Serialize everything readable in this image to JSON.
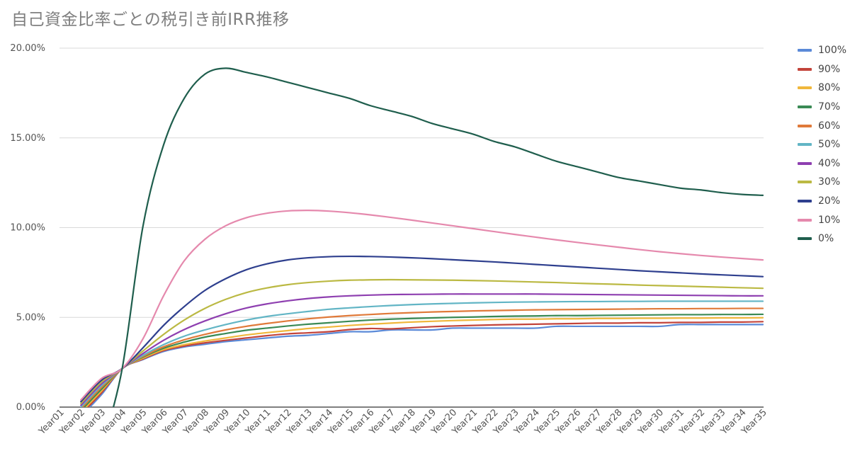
{
  "chart_data": {
    "type": "line",
    "title": "自己資金比率ごとの税引き前IRR推移",
    "xlabel": "",
    "ylabel": "",
    "ylim": [
      0,
      0.2
    ],
    "y_ticks": [
      0,
      0.05,
      0.1,
      0.15,
      0.2
    ],
    "y_tick_labels": [
      "0.00%",
      "5.00%",
      "10.00%",
      "15.00%",
      "20.00%"
    ],
    "grid": true,
    "legend": "right",
    "categories": [
      "Year01",
      "Year02",
      "Year03",
      "Year04",
      "Year05",
      "Year06",
      "Year07",
      "Year08",
      "Year09",
      "Year10",
      "Year11",
      "Year12",
      "Year13",
      "Year14",
      "Year15",
      "Year16",
      "Year17",
      "Year18",
      "Year19",
      "Year20",
      "Year21",
      "Year22",
      "Year23",
      "Year24",
      "Year25",
      "Year26",
      "Year27",
      "Year28",
      "Year29",
      "Year30",
      "Year31",
      "Year32",
      "Year33",
      "Year34",
      "Year35"
    ],
    "series": [
      {
        "name": "100%",
        "color": "#5b8ad8",
        "values": [
          null,
          -0.005,
          0.007,
          0.0215,
          0.0265,
          0.031,
          0.0335,
          0.035,
          0.0365,
          0.0375,
          0.0385,
          0.0395,
          0.04,
          0.041,
          0.042,
          0.042,
          0.043,
          0.043,
          0.043,
          0.044,
          0.044,
          0.044,
          0.044,
          0.044,
          0.045,
          0.045,
          0.045,
          0.045,
          0.045,
          0.045,
          0.046,
          0.046,
          0.046,
          0.046,
          0.046
        ]
      },
      {
        "name": "90%",
        "color": "#c3443b",
        "values": [
          null,
          -0.004,
          0.008,
          0.0215,
          0.0268,
          0.0315,
          0.034,
          0.0358,
          0.0372,
          0.0385,
          0.0398,
          0.0408,
          0.0414,
          0.042,
          0.0432,
          0.0438,
          0.0436,
          0.0442,
          0.0448,
          0.0452,
          0.0455,
          0.0458,
          0.046,
          0.0462,
          0.0464,
          0.0466,
          0.0468,
          0.0468,
          0.047,
          0.047,
          0.0472,
          0.0472,
          0.0474,
          0.0474,
          0.0476
        ]
      },
      {
        "name": "80%",
        "color": "#f0b73c",
        "values": [
          null,
          -0.003,
          0.009,
          0.0215,
          0.0272,
          0.032,
          0.0348,
          0.0368,
          0.0385,
          0.0402,
          0.0415,
          0.0426,
          0.0438,
          0.0446,
          0.0455,
          0.0462,
          0.0468,
          0.0474,
          0.0478,
          0.0482,
          0.0485,
          0.0488,
          0.049,
          0.049,
          0.0492,
          0.0492,
          0.0494,
          0.0494,
          0.0495,
          0.0495,
          0.0496,
          0.0496,
          0.0497,
          0.0497,
          0.0498
        ]
      },
      {
        "name": "70%",
        "color": "#3a8a55",
        "values": [
          null,
          -0.002,
          0.01,
          0.0215,
          0.0278,
          0.0328,
          0.0362,
          0.039,
          0.041,
          0.0428,
          0.044,
          0.0452,
          0.0462,
          0.047,
          0.0478,
          0.0485,
          0.049,
          0.0494,
          0.0497,
          0.05,
          0.0502,
          0.0505,
          0.0507,
          0.0508,
          0.051,
          0.051,
          0.0511,
          0.0512,
          0.0513,
          0.0514,
          0.0515,
          0.0515,
          0.0516,
          0.0516,
          0.0517
        ]
      },
      {
        "name": "60%",
        "color": "#e07a3a",
        "values": [
          null,
          -0.001,
          0.011,
          0.0215,
          0.0282,
          0.0336,
          0.0375,
          0.0405,
          0.043,
          0.045,
          0.0466,
          0.048,
          0.0492,
          0.0502,
          0.051,
          0.0516,
          0.0522,
          0.0526,
          0.053,
          0.0533,
          0.0536,
          0.0538,
          0.054,
          0.0542,
          0.0543,
          0.0544,
          0.0545,
          0.0546,
          0.0547,
          0.0548,
          0.0548,
          0.0549,
          0.0549,
          0.055,
          0.055
        ]
      },
      {
        "name": "50%",
        "color": "#62b5c5",
        "values": [
          null,
          0.0,
          0.012,
          0.0215,
          0.0288,
          0.0348,
          0.0395,
          0.043,
          0.046,
          0.0485,
          0.0505,
          0.052,
          0.0533,
          0.0545,
          0.0553,
          0.056,
          0.0566,
          0.0571,
          0.0575,
          0.0578,
          0.0581,
          0.0583,
          0.0585,
          0.0586,
          0.0587,
          0.0588,
          0.0588,
          0.0589,
          0.0589,
          0.059,
          0.059,
          0.059,
          0.059,
          0.059,
          0.059
        ]
      },
      {
        "name": "40%",
        "color": "#8e3fb0",
        "values": [
          null,
          0.001,
          0.013,
          0.0215,
          0.0298,
          0.0372,
          0.0432,
          0.048,
          0.052,
          0.0552,
          0.0575,
          0.0592,
          0.0605,
          0.0614,
          0.062,
          0.0624,
          0.0627,
          0.0628,
          0.0629,
          0.063,
          0.063,
          0.063,
          0.063,
          0.063,
          0.0629,
          0.0628,
          0.0627,
          0.0626,
          0.0625,
          0.0624,
          0.0623,
          0.0622,
          0.0621,
          0.062,
          0.062
        ]
      },
      {
        "name": "30%",
        "color": "#bbb943",
        "values": [
          null,
          0.002,
          0.014,
          0.0215,
          0.0312,
          0.0405,
          0.0485,
          0.055,
          0.06,
          0.0638,
          0.0664,
          0.0682,
          0.0694,
          0.0702,
          0.0707,
          0.0709,
          0.071,
          0.0709,
          0.0708,
          0.0707,
          0.0705,
          0.0703,
          0.07,
          0.0697,
          0.0694,
          0.069,
          0.0687,
          0.0684,
          0.068,
          0.0677,
          0.0674,
          0.0671,
          0.0668,
          0.0665,
          0.0662
        ]
      },
      {
        "name": "20%",
        "color": "#2e3f8e",
        "values": [
          null,
          0.003,
          0.015,
          0.0215,
          0.033,
          0.0455,
          0.056,
          0.065,
          0.0715,
          0.0765,
          0.0798,
          0.082,
          0.0832,
          0.0838,
          0.084,
          0.0839,
          0.0836,
          0.0832,
          0.0827,
          0.0821,
          0.0815,
          0.0809,
          0.0802,
          0.0795,
          0.0788,
          0.0781,
          0.0774,
          0.0767,
          0.076,
          0.0754,
          0.0748,
          0.0742,
          0.0737,
          0.0732,
          0.0727
        ]
      },
      {
        "name": "10%",
        "color": "#e589ad",
        "values": [
          null,
          0.004,
          0.016,
          0.0215,
          0.038,
          0.062,
          0.0815,
          0.0935,
          0.101,
          0.1055,
          0.108,
          0.1093,
          0.1096,
          0.1092,
          0.1083,
          0.1071,
          0.1057,
          0.1042,
          0.1026,
          0.101,
          0.0994,
          0.0978,
          0.0962,
          0.0947,
          0.0932,
          0.0918,
          0.0904,
          0.0891,
          0.0878,
          0.0866,
          0.0855,
          0.0845,
          0.0836,
          0.0828,
          0.082
        ]
      },
      {
        "name": "0%",
        "color": "#1f5e4d",
        "values": [
          null,
          null,
          null,
          0.0215,
          0.1005,
          0.146,
          0.172,
          0.1855,
          0.1888,
          0.1865,
          0.184,
          0.181,
          0.178,
          0.175,
          0.172,
          0.168,
          0.165,
          0.162,
          0.158,
          0.155,
          0.152,
          0.148,
          0.145,
          0.141,
          0.137,
          0.134,
          0.131,
          0.128,
          0.126,
          0.124,
          0.122,
          0.121,
          0.1195,
          0.1185,
          0.118
        ]
      }
    ]
  }
}
